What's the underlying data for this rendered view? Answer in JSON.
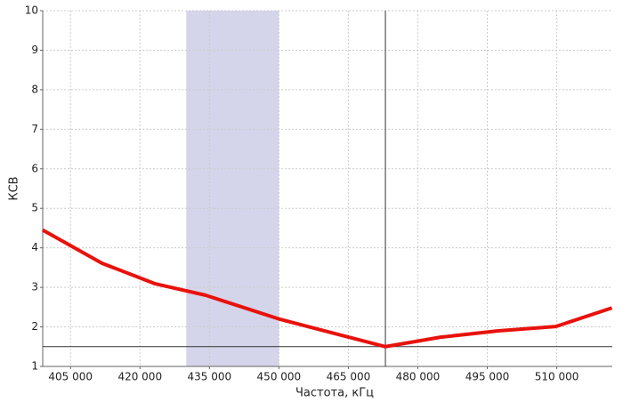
{
  "chart_data": {
    "type": "line",
    "x_label": "Частота, кГц",
    "y_label": "КСВ",
    "x": [
      399000,
      411800,
      423300,
      434200,
      450300,
      473000,
      484900,
      497400,
      509800,
      521900
    ],
    "series": [
      {
        "name": "КСВ",
        "color": "#e8120c",
        "values": [
          4.45,
          3.61,
          3.09,
          2.8,
          2.19,
          1.5,
          1.74,
          1.9,
          2.01,
          2.48
        ]
      }
    ],
    "xlim": [
      399000,
      522000
    ],
    "xticks": [
      {
        "value": 405000,
        "label": "405 000"
      },
      {
        "value": 420000,
        "label": "420 000"
      },
      {
        "value": 435000,
        "label": "435 000"
      },
      {
        "value": 450000,
        "label": "450 000"
      },
      {
        "value": 465000,
        "label": "465 000"
      },
      {
        "value": 480000,
        "label": "480 000"
      },
      {
        "value": 495000,
        "label": "495 000"
      },
      {
        "value": 510000,
        "label": "510 000"
      }
    ],
    "ylim": [
      1,
      10
    ],
    "yticks": [
      1,
      2,
      3,
      4,
      5,
      6,
      7,
      8,
      9,
      10
    ],
    "grid": true,
    "band": [
      430000,
      450000
    ],
    "band_color": "#d4d4ea",
    "vline": 473000,
    "hline": 1.5
  }
}
